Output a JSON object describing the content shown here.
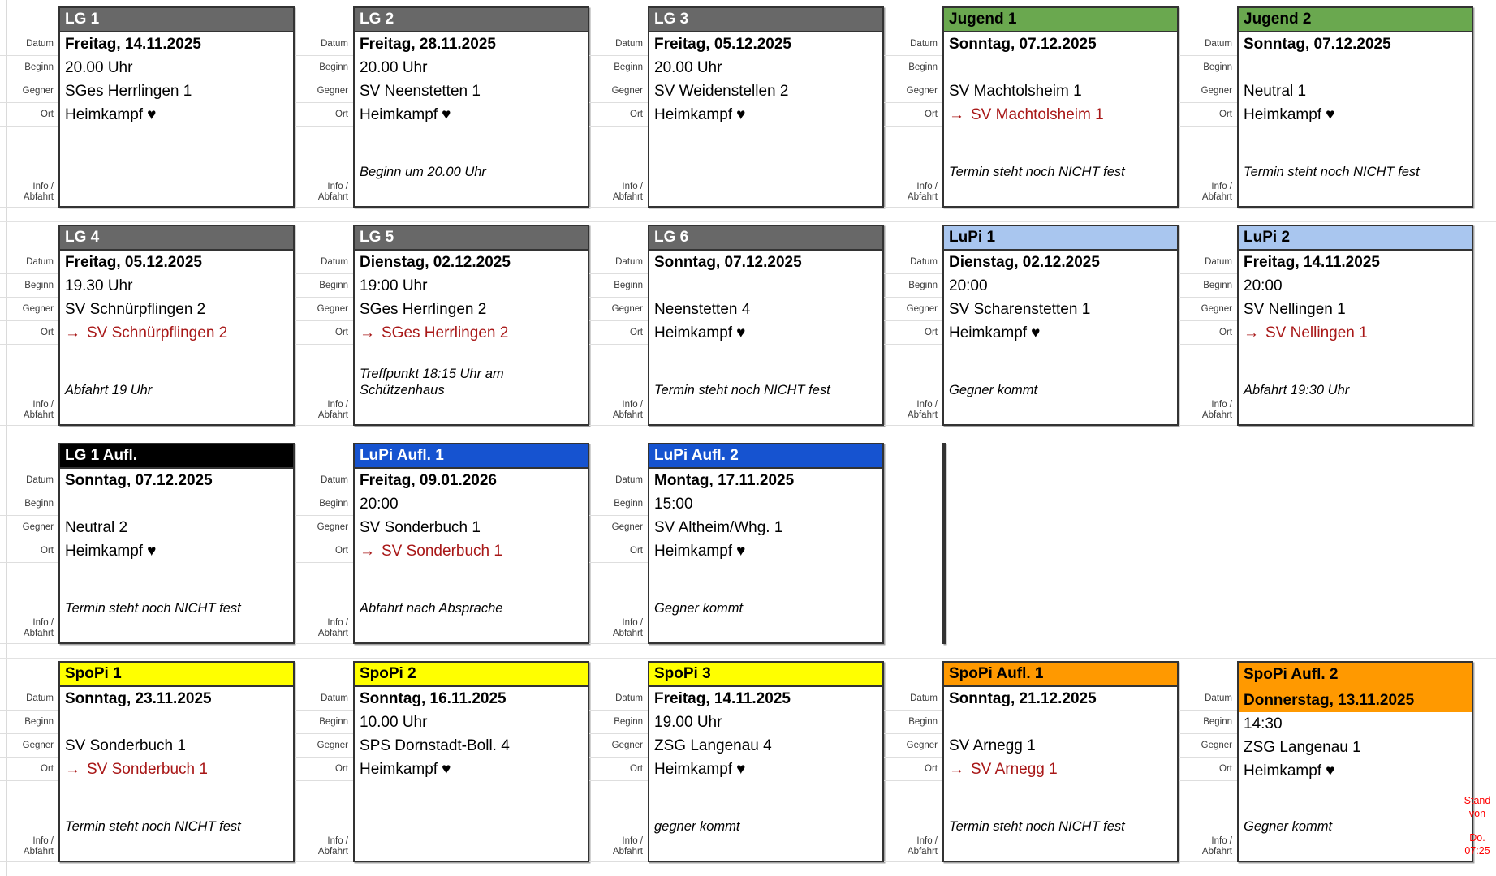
{
  "page": {
    "stand": {
      "line1": "Stand",
      "line2": "von",
      "line3": "Do.",
      "line4": "07:25"
    }
  },
  "row_labels": {
    "datum": "Datum",
    "beginn": "Beginn",
    "gegner": "Gegner",
    "ort": "Ort",
    "info_line1": "Info /",
    "info_line2": "Abfahrt"
  },
  "icons": {
    "away_arrow": "→",
    "home_heart": "♥"
  },
  "accent": {
    "away_red": "#a81717",
    "stand_red": "#ff0000"
  },
  "palette": {
    "gray": {
      "bg": "#686868",
      "fg": "#ffffff"
    },
    "green": {
      "bg": "#6aa84f",
      "fg": "#000000"
    },
    "lightblue": {
      "bg": "#a9c6ef",
      "fg": "#000000"
    },
    "blue": {
      "bg": "#1653d0",
      "fg": "#ffffff"
    },
    "black": {
      "bg": "#000000",
      "fg": "#ffffff"
    },
    "yellow": {
      "bg": "#ffff00",
      "fg": "#000000"
    },
    "orange": {
      "bg": "#ff9900",
      "fg": "#000000"
    }
  },
  "rows": [
    [
      {
        "team": "LG 1",
        "color": "gray",
        "datum": "Freitag, 14.11.2025",
        "beginn": "20.00 Uhr",
        "gegner": "SGes Herrlingen 1",
        "ort": "Heimkampf",
        "ort_type": "home",
        "info": ""
      },
      {
        "team": "LG 2",
        "color": "gray",
        "datum": "Freitag, 28.11.2025",
        "beginn": "20.00 Uhr",
        "gegner": "SV Neenstetten 1",
        "ort": "Heimkampf",
        "ort_type": "home",
        "info": "Beginn um 20.00 Uhr"
      },
      {
        "team": "LG 3",
        "color": "gray",
        "datum": "Freitag, 05.12.2025",
        "beginn": "20.00 Uhr",
        "gegner": "SV Weidenstellen 2",
        "ort": "Heimkampf",
        "ort_type": "home",
        "info": ""
      },
      {
        "team": "Jugend 1",
        "color": "green",
        "datum": "Sonntag, 07.12.2025",
        "beginn": "",
        "gegner": "SV Machtolsheim 1",
        "ort": "SV Machtolsheim 1",
        "ort_type": "away",
        "info": "Termin steht noch NICHT fest"
      },
      {
        "team": "Jugend 2",
        "color": "green",
        "datum": "Sonntag, 07.12.2025",
        "beginn": "",
        "gegner": "Neutral 1",
        "ort": "Heimkampf",
        "ort_type": "home",
        "info": "Termin steht noch NICHT fest"
      }
    ],
    [
      {
        "team": "LG 4",
        "color": "gray",
        "datum": "Freitag, 05.12.2025",
        "beginn": "19.30 Uhr",
        "gegner": "SV Schnürpflingen 2",
        "ort": "SV Schnürpflingen 2",
        "ort_type": "away",
        "info": "Abfahrt 19 Uhr"
      },
      {
        "team": "LG 5",
        "color": "gray",
        "datum": "Dienstag, 02.12.2025",
        "beginn": "19:00 Uhr",
        "gegner": "SGes Herrlingen 2",
        "ort": "SGes Herrlingen 2",
        "ort_type": "away",
        "info": "Treffpunkt 18:15 Uhr am Schützenhaus"
      },
      {
        "team": "LG 6",
        "color": "gray",
        "datum": "Sonntag, 07.12.2025",
        "beginn": "",
        "gegner": "Neenstetten 4",
        "ort": "Heimkampf",
        "ort_type": "home",
        "info": "Termin steht noch NICHT fest"
      },
      {
        "team": "LuPi 1",
        "color": "lightblue",
        "datum": "Dienstag, 02.12.2025",
        "beginn": "20:00",
        "gegner": "SV Scharenstetten 1",
        "ort": "Heimkampf",
        "ort_type": "home",
        "info": "Gegner kommt"
      },
      {
        "team": "LuPi 2",
        "color": "lightblue",
        "datum": "Freitag, 14.11.2025",
        "beginn": "20:00",
        "gegner": "SV Nellingen 1",
        "ort": "SV Nellingen 1",
        "ort_type": "away",
        "info": "Abfahrt 19:30 Uhr"
      }
    ],
    [
      {
        "team": "LG 1 Aufl.",
        "color": "black",
        "datum": "Sonntag, 07.12.2025",
        "beginn": "",
        "gegner": "Neutral 2",
        "ort": "Heimkampf",
        "ort_type": "home",
        "info": "Termin steht noch NICHT fest"
      },
      {
        "team": "LuPi Aufl. 1",
        "color": "blue",
        "datum": "Freitag, 09.01.2026",
        "beginn": "20:00",
        "gegner": "SV Sonderbuch 1",
        "ort": "SV Sonderbuch 1",
        "ort_type": "away",
        "info": "Abfahrt nach Absprache"
      },
      {
        "team": "LuPi Aufl. 2",
        "color": "blue",
        "datum": "Montag, 17.11.2025",
        "beginn": "15:00",
        "gegner": "SV Altheim/Whg. 1",
        "ort": "Heimkampf",
        "ort_type": "home",
        "info": "Gegner kommt"
      },
      {
        "type": "empty",
        "span": 2
      }
    ],
    [
      {
        "team": "SpoPi 1",
        "color": "yellow",
        "datum": "Sonntag, 23.11.2025",
        "beginn": "",
        "gegner": "SV Sonderbuch 1",
        "ort": "SV Sonderbuch 1",
        "ort_type": "away",
        "info": "Termin steht noch NICHT fest"
      },
      {
        "team": "SpoPi 2",
        "color": "yellow",
        "datum": "Sonntag, 16.11.2025",
        "beginn": "10.00 Uhr",
        "gegner": "SPS Dornstadt-Boll. 4",
        "ort": "Heimkampf",
        "ort_type": "home",
        "info": ""
      },
      {
        "team": "SpoPi 3",
        "color": "yellow",
        "datum": "Freitag, 14.11.2025",
        "beginn": "19.00 Uhr",
        "gegner": "ZSG Langenau 4",
        "ort": "Heimkampf",
        "ort_type": "home",
        "info": "gegner kommt"
      },
      {
        "team": "SpoPi Aufl. 1",
        "color": "orange",
        "datum": "Sonntag, 21.12.2025",
        "beginn": "",
        "gegner": "SV Arnegg 1",
        "ort": "SV Arnegg 1",
        "ort_type": "away",
        "info": "Termin steht noch NICHT fest"
      },
      {
        "team": "SpoPi Aufl. 2",
        "color": "orange",
        "datum_highlight": true,
        "datum": "Donnerstag, 13.11.2025",
        "beginn": "14:30",
        "gegner": "ZSG Langenau 1",
        "ort": "Heimkampf",
        "ort_type": "home",
        "info": "Gegner kommt"
      }
    ]
  ]
}
